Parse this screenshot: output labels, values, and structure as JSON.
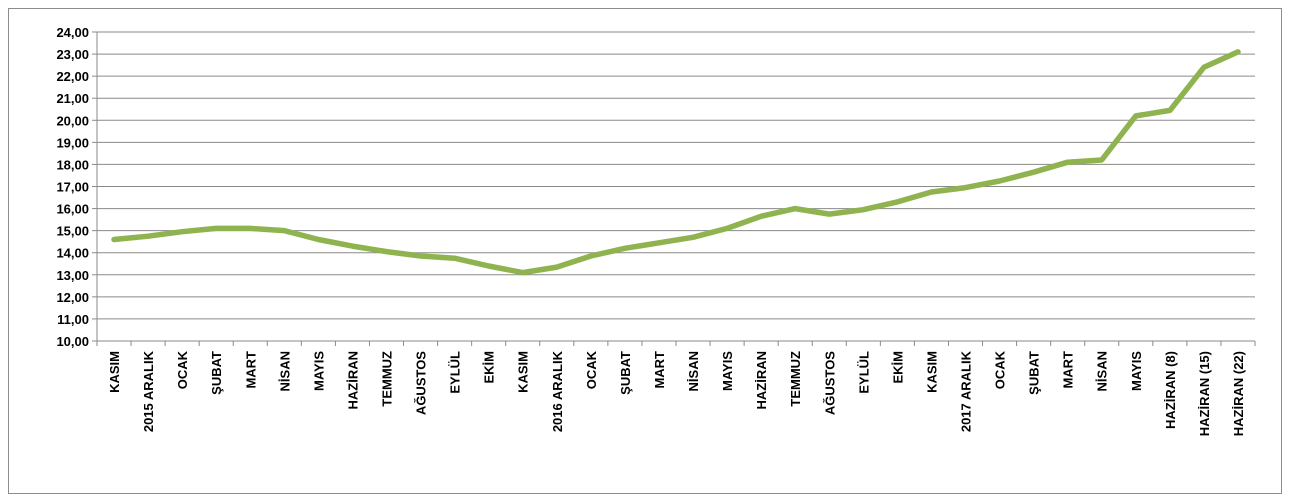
{
  "chart_data": {
    "type": "line",
    "title": "",
    "xlabel": "",
    "ylabel": "",
    "ylim": [
      10,
      24
    ],
    "yticks": [
      "10,00",
      "11,00",
      "12,00",
      "13,00",
      "14,00",
      "15,00",
      "16,00",
      "17,00",
      "18,00",
      "19,00",
      "20,00",
      "21,00",
      "22,00",
      "23,00",
      "24,00"
    ],
    "grid": true,
    "legend": "none",
    "categories": [
      "KASIM",
      "2015 ARALIK",
      "OCAK",
      "ŞUBAT",
      "MART",
      "NİSAN",
      "MAYIS",
      "HAZİRAN",
      "TEMMUZ",
      "AĞUSTOS",
      "EYLÜL",
      "EKİM",
      "KASIM",
      "2016 ARALIK",
      "OCAK",
      "ŞUBAT",
      "MART",
      "NİSAN",
      "MAYIS",
      "HAZİRAN",
      "TEMMUZ",
      "AĞUSTOS",
      "EYLÜL",
      "EKİM",
      "KASIM",
      "2017 ARALIK",
      "OCAK",
      "ŞUBAT",
      "MART",
      "NİSAN",
      "MAYIS",
      "HAZİRAN (8)",
      "HAZİRAN (15)",
      "HAZİRAN (22)"
    ],
    "series": [
      {
        "color": "#8fb34e",
        "values": [
          14.6,
          14.75,
          14.95,
          15.1,
          15.1,
          15.0,
          14.6,
          14.3,
          14.05,
          13.85,
          13.75,
          13.4,
          13.1,
          13.35,
          13.85,
          14.2,
          14.45,
          14.7,
          15.1,
          15.65,
          16.0,
          15.75,
          15.95,
          16.3,
          16.75,
          16.95,
          17.25,
          17.65,
          18.1,
          18.2,
          20.2,
          20.45,
          22.4,
          23.1
        ]
      }
    ]
  }
}
